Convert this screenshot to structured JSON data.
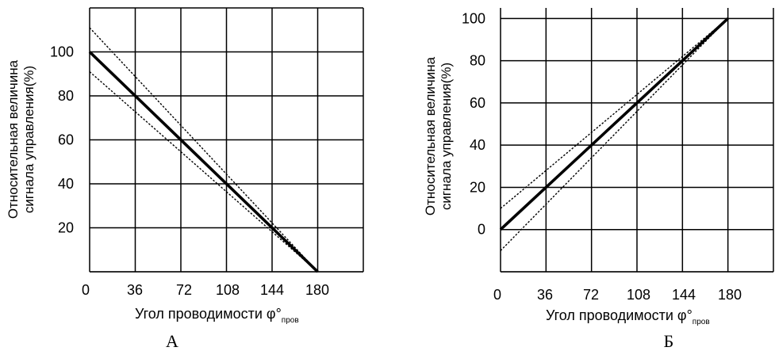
{
  "chart_data": [
    {
      "type": "line",
      "caption": "А",
      "ylabel_line1": "Относительная величина",
      "ylabel_line2": "сигнала управления(%)",
      "xlabel": "Угол проводимости φ°",
      "xlabel_sub": "пров",
      "x_ticks": [
        "0",
        "36",
        "72",
        "108",
        "144",
        "180"
      ],
      "y_ticks": [
        "20",
        "40",
        "60",
        "80",
        "100"
      ],
      "xlim": [
        0,
        216
      ],
      "ylim": [
        0,
        120
      ],
      "grid": true,
      "series": [
        {
          "style": "solid",
          "x": [
            0,
            180
          ],
          "y": [
            100,
            0
          ]
        },
        {
          "style": "dashed",
          "x": [
            0,
            180
          ],
          "y": [
            111,
            0
          ]
        },
        {
          "style": "dashed",
          "x": [
            0,
            180
          ],
          "y": [
            91,
            0
          ]
        }
      ]
    },
    {
      "type": "line",
      "caption": "Б",
      "ylabel_line1": "Относительная величина",
      "ylabel_line2": "сигнала управления(%)",
      "xlabel": "Угол проводимости φ°",
      "xlabel_sub": "пров",
      "x_ticks": [
        "0",
        "36",
        "72",
        "108",
        "144",
        "180"
      ],
      "y_ticks": [
        "0",
        "20",
        "40",
        "60",
        "80",
        "100"
      ],
      "xlim": [
        0,
        216
      ],
      "ylim": [
        -20,
        105
      ],
      "grid": true,
      "series": [
        {
          "style": "solid",
          "x": [
            0,
            180
          ],
          "y": [
            0,
            100
          ]
        },
        {
          "style": "dashed",
          "x": [
            0,
            180
          ],
          "y": [
            10,
            100
          ]
        },
        {
          "style": "dashed",
          "x": [
            0,
            180
          ],
          "y": [
            -10,
            100
          ]
        }
      ]
    }
  ]
}
